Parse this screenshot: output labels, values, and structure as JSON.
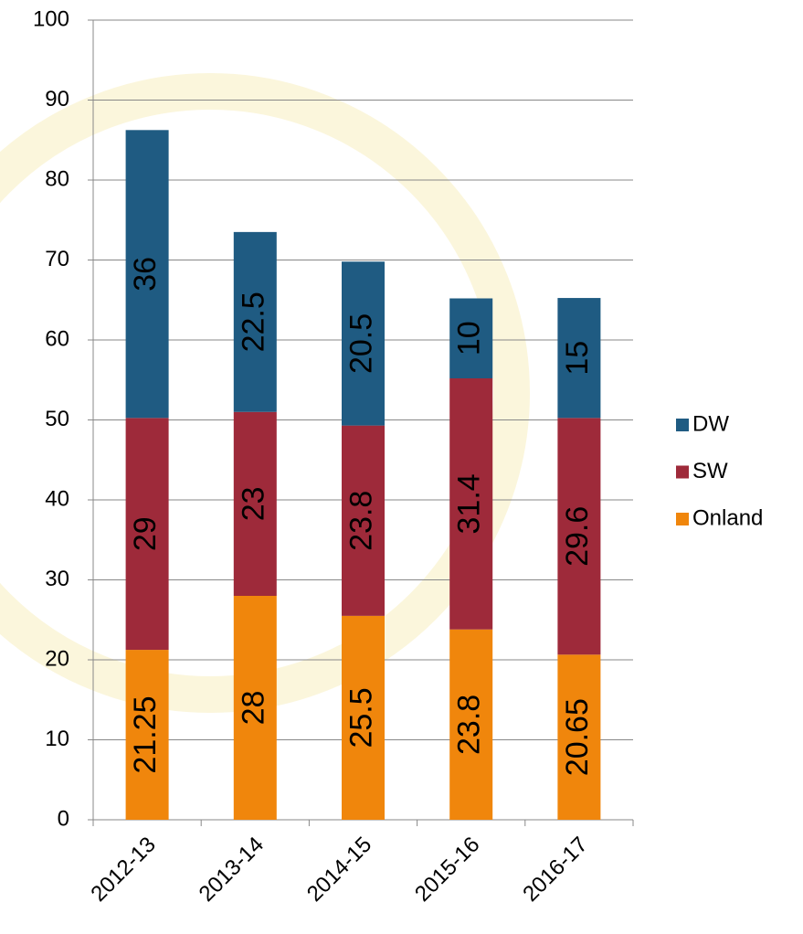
{
  "chart_data": {
    "type": "stacked_bar",
    "categories": [
      "2012-13",
      "2013-14",
      "2014-15",
      "2015-16",
      "2016-17"
    ],
    "series": [
      {
        "name": "Onland",
        "color": "#f0860c",
        "values": [
          21.25,
          28,
          25.5,
          23.8,
          20.65
        ]
      },
      {
        "name": "SW",
        "color": "#9e2a3a",
        "values": [
          29,
          23,
          23.8,
          31.4,
          29.6
        ]
      },
      {
        "name": "DW",
        "color": "#1f5b82",
        "values": [
          36,
          22.5,
          20.5,
          10,
          15
        ]
      }
    ],
    "ylim": [
      0,
      100
    ],
    "yticks": [
      0,
      10,
      20,
      30,
      40,
      50,
      60,
      70,
      80,
      90,
      100
    ],
    "grid": true,
    "legend": "right"
  }
}
